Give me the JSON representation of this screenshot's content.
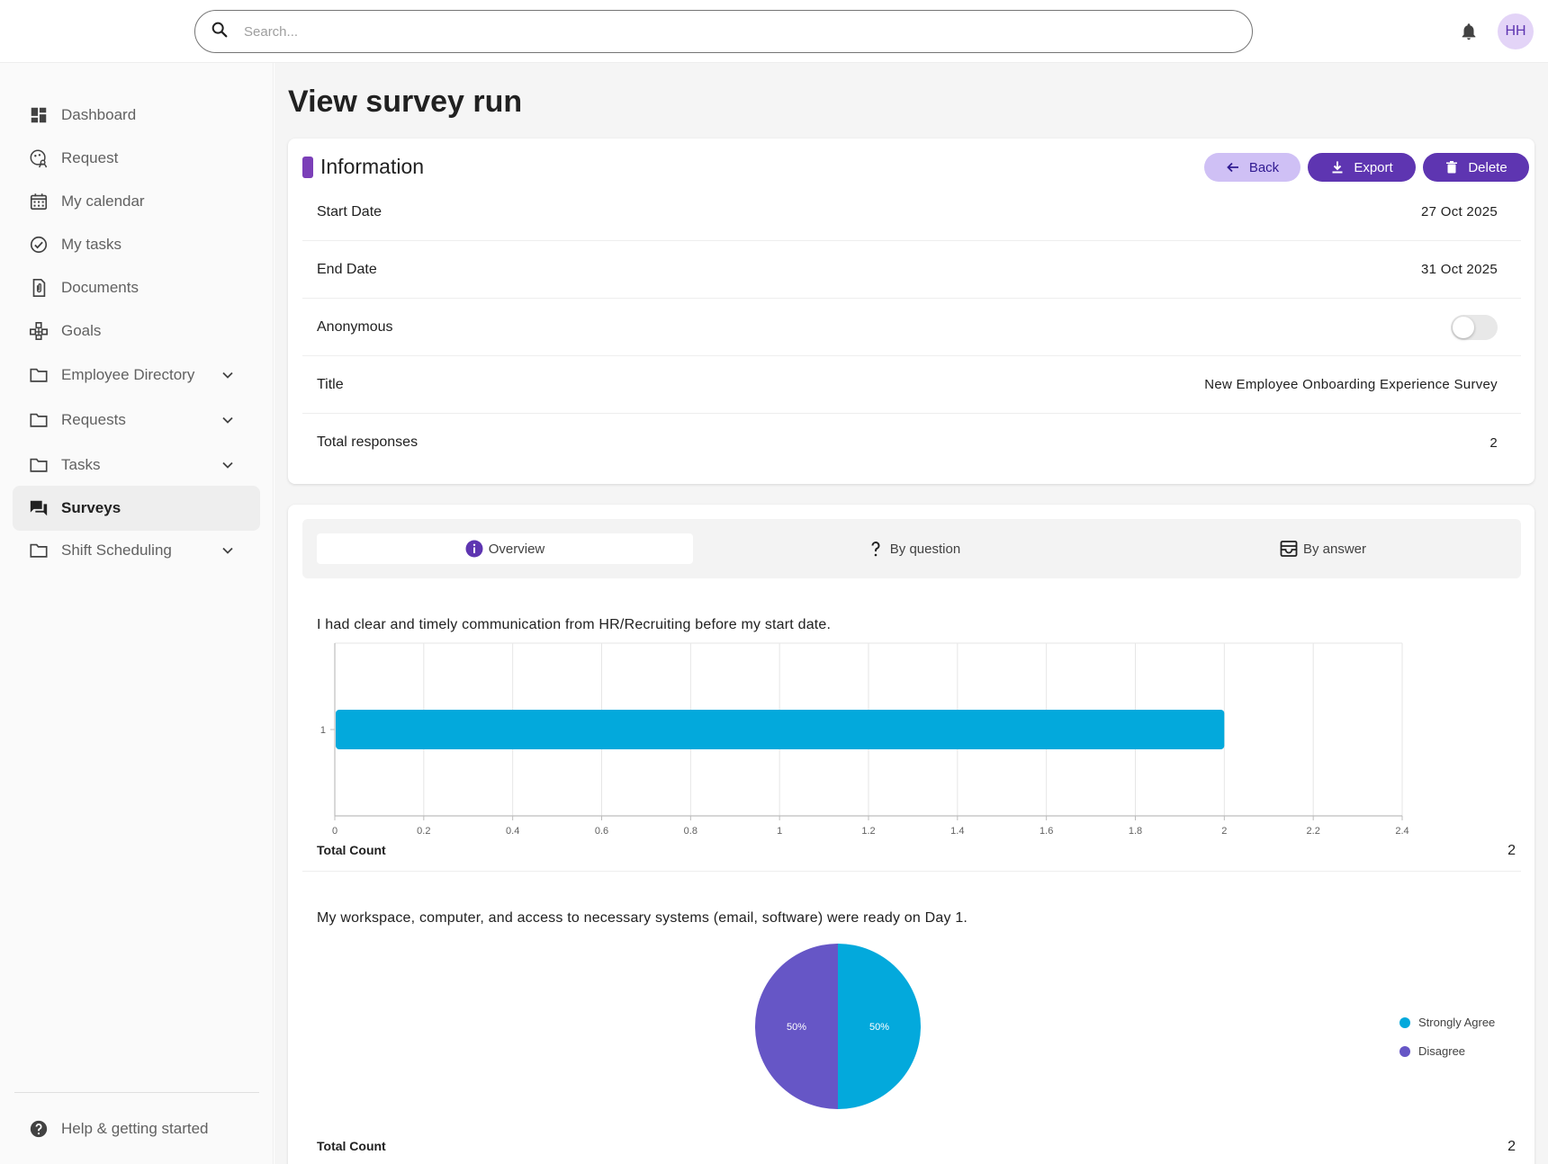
{
  "search": {
    "placeholder": "Search..."
  },
  "user": {
    "initials": "HH"
  },
  "sidebar": {
    "items": [
      {
        "label": "Dashboard",
        "icon": "dashboard-icon"
      },
      {
        "label": "Request",
        "icon": "request-icon"
      },
      {
        "label": "My calendar",
        "icon": "calendar-icon"
      },
      {
        "label": "My tasks",
        "icon": "check-circle-icon"
      },
      {
        "label": "Documents",
        "icon": "document-icon"
      },
      {
        "label": "Goals",
        "icon": "goals-icon"
      },
      {
        "label": "Employee Directory",
        "icon": "folder-icon",
        "expandable": true
      },
      {
        "label": "Requests",
        "icon": "folder-icon",
        "expandable": true
      },
      {
        "label": "Tasks",
        "icon": "folder-icon",
        "expandable": true
      },
      {
        "label": "Surveys",
        "icon": "chat-icon",
        "active": true
      },
      {
        "label": "Shift Scheduling",
        "icon": "folder-icon",
        "expandable": true
      }
    ],
    "help_label": "Help & getting started"
  },
  "page": {
    "title": "View survey run"
  },
  "info": {
    "title": "Information",
    "buttons": {
      "back": "Back",
      "export": "Export",
      "delete": "Delete"
    },
    "rows": [
      {
        "label": "Start Date",
        "value": "27 Oct 2025"
      },
      {
        "label": "End Date",
        "value": "31 Oct 2025"
      },
      {
        "label": "Anonymous",
        "toggle": false
      },
      {
        "label": "Title",
        "value": "New Employee Onboarding Experience Survey"
      },
      {
        "label": "Total responses",
        "value": "2"
      }
    ]
  },
  "tabs": [
    {
      "label": "Overview",
      "icon": "info-icon",
      "active": true
    },
    {
      "label": "By question",
      "icon": "question-icon"
    },
    {
      "label": "By answer",
      "icon": "inbox-icon"
    }
  ],
  "questions": [
    {
      "text": "I had clear and timely communication from HR/Recruiting before my start date.",
      "total_label": "Total Count",
      "total": "2"
    },
    {
      "text": "My workspace, computer, and access to necessary systems (email, software) were ready on Day 1.",
      "total_label": "Total Count",
      "total": "2"
    }
  ],
  "chart_data": [
    {
      "type": "bar",
      "orientation": "horizontal",
      "categories": [
        "1"
      ],
      "values": [
        2
      ],
      "xlim": [
        0,
        2.4
      ],
      "xticks": [
        "0",
        "0.2",
        "0.4",
        "0.6",
        "0.8",
        "1",
        "1.2",
        "1.4",
        "1.6",
        "1.8",
        "2",
        "2.2",
        "2.4"
      ],
      "color": "#03a9dc",
      "grid": true
    },
    {
      "type": "pie",
      "slices": [
        {
          "label": "Strongly Agree",
          "value": 50,
          "display": "50%",
          "color": "#03a9dc"
        },
        {
          "label": "Disagree",
          "value": 50,
          "display": "50%",
          "color": "#6656c6"
        }
      ],
      "legend": "right"
    }
  ]
}
